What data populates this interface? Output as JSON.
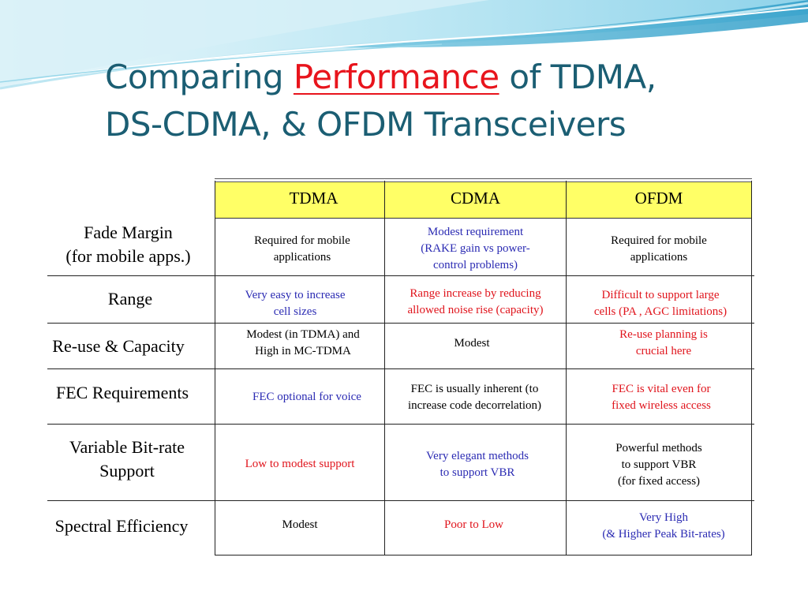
{
  "title": {
    "part1": "Comparing ",
    "highlight": "Performance",
    "part2": " of TDMA,",
    "line2": "DS-CDMA, & OFDM Transceivers"
  },
  "table": {
    "columns": [
      "TDMA",
      "CDMA",
      "OFDM"
    ],
    "rows": [
      {
        "label_l1": "Fade Margin",
        "label_l2": "(for mobile apps.)",
        "tdma": [
          "Required for mobile",
          "applications"
        ],
        "cdma": [
          "Modest requirement",
          "(RAKE gain vs power-",
          "control problems)"
        ],
        "ofdm": [
          "Required for mobile",
          "applications"
        ]
      },
      {
        "label_l1": "Range",
        "tdma": [
          "Very easy to increase",
          "cell sizes"
        ],
        "cdma": [
          "Range increase by reducing",
          "allowed noise rise (capacity)"
        ],
        "ofdm": [
          "Difficult to support large",
          "cells (PA , AGC limitations)"
        ]
      },
      {
        "label_l1": "Re-use & Capacity",
        "tdma": [
          "Modest (in TDMA) and",
          "High in MC-TDMA"
        ],
        "cdma": [
          "Modest"
        ],
        "ofdm": [
          "Re-use planning is",
          "crucial here"
        ]
      },
      {
        "label_l1": "FEC Requirements",
        "tdma": [
          "FEC optional for voice"
        ],
        "cdma": [
          "FEC is usually inherent (to",
          "increase code decorrelation)"
        ],
        "ofdm": [
          "FEC is vital even for",
          "fixed wireless access"
        ]
      },
      {
        "label_l1": "Variable Bit-rate",
        "label_l2": "Support",
        "tdma": [
          "Low  to modest support"
        ],
        "cdma": [
          "Very elegant methods",
          "to support VBR"
        ],
        "ofdm": [
          "Powerful methods",
          "to support VBR",
          "(for fixed access)"
        ]
      },
      {
        "label_l1": "Spectral Efficiency",
        "tdma": [
          "Modest"
        ],
        "cdma": [
          "Poor to Low"
        ],
        "ofdm": [
          "Very High",
          "(& Higher Peak Bit-rates)"
        ]
      }
    ]
  },
  "colors": {
    "title": "#1b5e73",
    "highlight": "#e8141c",
    "header_fill": "#ffff66",
    "blue_text": "#2b2bb3",
    "red_text": "#e0141c",
    "banner_light": "#bfe8f4",
    "banner_dark": "#3aa8cf"
  }
}
